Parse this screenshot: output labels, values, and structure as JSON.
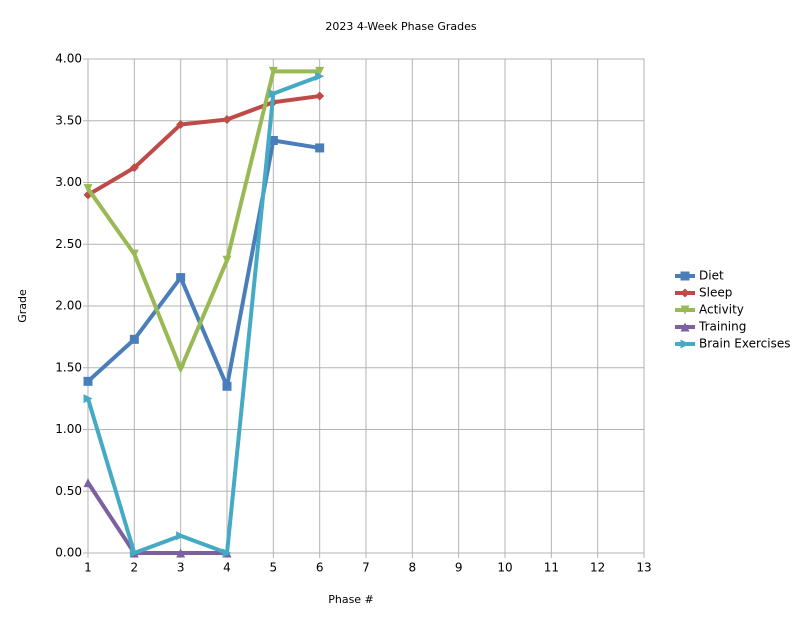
{
  "chart_data": {
    "type": "line",
    "title": "2023 4-Week Phase Grades",
    "x_label": "Phase #",
    "y_label": "Grade",
    "x": [
      1,
      2,
      3,
      4,
      5,
      6
    ],
    "series": [
      {
        "name": "Diet",
        "color": "#4a7ebb",
        "marker": "square",
        "values": [
          1.39,
          1.73,
          2.23,
          1.35,
          3.34,
          3.28
        ]
      },
      {
        "name": "Sleep",
        "color": "#be4b48",
        "marker": "diamond",
        "values": [
          2.9,
          3.12,
          3.47,
          3.51,
          3.65,
          3.7
        ]
      },
      {
        "name": "Activity",
        "color": "#98b954",
        "marker": "triangle-down",
        "values": [
          2.95,
          2.42,
          1.49,
          2.37,
          3.9,
          3.9
        ]
      },
      {
        "name": "Training",
        "color": "#7d60a0",
        "marker": "triangle-up",
        "values": [
          0.57,
          0,
          0,
          0,
          null,
          null
        ]
      },
      {
        "name": "Brain Exercises",
        "color": "#46aac5",
        "marker": "triangle-right",
        "values": [
          1.25,
          0,
          0.14,
          0,
          3.72,
          3.86
        ]
      }
    ],
    "xlim": [
      1,
      13
    ],
    "xticks": [
      1,
      2,
      3,
      4,
      5,
      6,
      7,
      8,
      9,
      10,
      11,
      12,
      13
    ],
    "ylim": [
      0,
      4
    ],
    "yticks": [
      {
        "value": 0,
        "label": "0.00"
      },
      {
        "value": 0.5,
        "label": "0.50"
      },
      {
        "value": 1,
        "label": "1.00"
      },
      {
        "value": 1.5,
        "label": "1.50"
      },
      {
        "value": 2,
        "label": "2.00"
      },
      {
        "value": 2.5,
        "label": "2.50"
      },
      {
        "value": 3,
        "label": "3.00"
      },
      {
        "value": 3.5,
        "label": "3.50"
      },
      {
        "value": 4,
        "label": "4.00"
      }
    ],
    "grid": true,
    "legend": "right"
  }
}
